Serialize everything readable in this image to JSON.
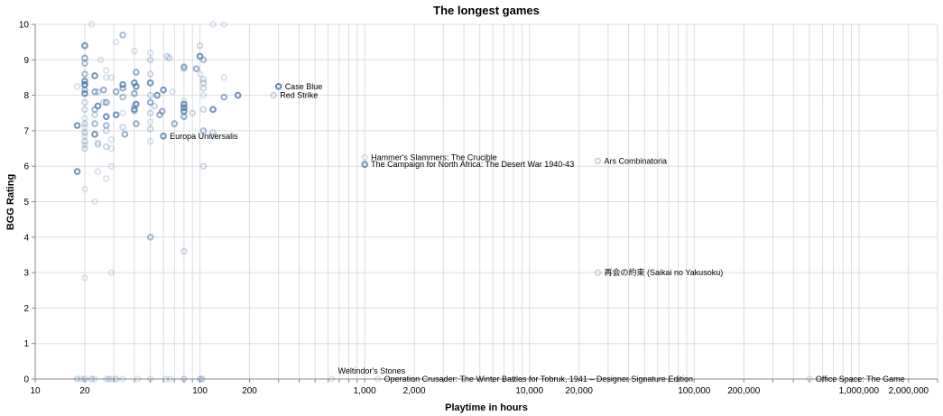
{
  "chart_data": {
    "type": "scatter",
    "title": "The longest games",
    "xlabel": "Playtime in hours",
    "ylabel": "BGG Rating",
    "x_scale": "log",
    "xlim": [
      10,
      3000000
    ],
    "ylim": [
      0,
      10
    ],
    "x_ticks": [
      10,
      20,
      100,
      200,
      1000,
      2000,
      10000,
      20000,
      100000,
      200000,
      1000000,
      2000000
    ],
    "x_tick_labels": [
      "10",
      "20",
      "100",
      "200",
      "1,000",
      "2,000",
      "10,000",
      "20,000",
      "100,000",
      "200,000",
      "1,000,000",
      "2,000,000"
    ],
    "y_ticks": [
      0,
      1,
      2,
      3,
      4,
      5,
      6,
      7,
      8,
      9,
      10
    ],
    "y_tick_labels": [
      "0",
      "1",
      "2",
      "3",
      "4",
      "5",
      "6",
      "7",
      "8",
      "9",
      "10"
    ],
    "grid": true,
    "point_color": "#4c78a8",
    "labeled_points": [
      {
        "name": "Case Blue",
        "x": 300,
        "y": 8.25,
        "opacity": 0.9
      },
      {
        "name": "Red Strike",
        "x": 280,
        "y": 8.0,
        "opacity": 0.3
      },
      {
        "name": "Europa Universalis",
        "x": 60,
        "y": 6.85,
        "opacity": 0.8
      },
      {
        "name": "Hammer's Slammers: The Crucible",
        "x": 1000,
        "y": 6.25,
        "opacity": 0.2
      },
      {
        "name": "The Campaign for North Africa: The Desert War 1940-43",
        "x": 1000,
        "y": 6.05,
        "opacity": 0.8
      },
      {
        "name": "Ars Combinatoria",
        "x": 26000,
        "y": 6.15,
        "opacity": 0.3
      },
      {
        "name": "再会の約束 (Saikai no Yakusoku)",
        "x": 26000,
        "y": 3.0,
        "opacity": 0.3
      },
      {
        "name": "Weltindor's Stones",
        "x": 630,
        "y": 0.0,
        "opacity": 0.2
      },
      {
        "name": "Operation Crusader: The Winter Battles for Tobruk, 1941 – Designer Signature Edition",
        "x": 1200,
        "y": 0.0,
        "opacity": 0.2
      },
      {
        "name": "Office Space: The Game",
        "x": 500000,
        "y": 0.0,
        "opacity": 0.2
      }
    ],
    "points": [
      {
        "x": 20,
        "y": 9.4,
        "o": 0.8
      },
      {
        "x": 20,
        "y": 9.05,
        "o": 0.6
      },
      {
        "x": 20,
        "y": 8.9,
        "o": 0.5
      },
      {
        "x": 20,
        "y": 8.6,
        "o": 0.5
      },
      {
        "x": 20,
        "y": 8.4,
        "o": 0.8
      },
      {
        "x": 20,
        "y": 8.3,
        "o": 0.9
      },
      {
        "x": 20,
        "y": 8.15,
        "o": 0.5
      },
      {
        "x": 20,
        "y": 8.05,
        "o": 0.8
      },
      {
        "x": 20,
        "y": 7.8,
        "o": 0.3
      },
      {
        "x": 20,
        "y": 7.6,
        "o": 0.3
      },
      {
        "x": 20,
        "y": 7.35,
        "o": 0.2
      },
      {
        "x": 20,
        "y": 7.2,
        "o": 0.3
      },
      {
        "x": 20,
        "y": 7.1,
        "o": 0.2
      },
      {
        "x": 20,
        "y": 6.95,
        "o": 0.3
      },
      {
        "x": 20,
        "y": 6.85,
        "o": 0.2
      },
      {
        "x": 20,
        "y": 6.7,
        "o": 0.3
      },
      {
        "x": 20,
        "y": 6.6,
        "o": 0.2
      },
      {
        "x": 20,
        "y": 6.5,
        "o": 0.3
      },
      {
        "x": 20,
        "y": 5.35,
        "o": 0.2
      },
      {
        "x": 20,
        "y": 2.85,
        "o": 0.2
      },
      {
        "x": 20,
        "y": 0.0,
        "o": 0.3
      },
      {
        "x": 18,
        "y": 8.25,
        "o": 0.2
      },
      {
        "x": 18,
        "y": 7.15,
        "o": 0.8
      },
      {
        "x": 18,
        "y": 5.85,
        "o": 0.8
      },
      {
        "x": 18,
        "y": 0.0,
        "o": 0.3
      },
      {
        "x": 19,
        "y": 0.0,
        "o": 0.2
      },
      {
        "x": 22,
        "y": 10.0,
        "o": 0.2
      },
      {
        "x": 23,
        "y": 8.55,
        "o": 0.8
      },
      {
        "x": 23,
        "y": 8.1,
        "o": 0.6
      },
      {
        "x": 24,
        "y": 8.1,
        "o": 0.3
      },
      {
        "x": 23,
        "y": 7.6,
        "o": 0.5
      },
      {
        "x": 24,
        "y": 7.7,
        "o": 0.8
      },
      {
        "x": 23,
        "y": 7.45,
        "o": 0.3
      },
      {
        "x": 23,
        "y": 7.2,
        "o": 0.5
      },
      {
        "x": 23,
        "y": 6.9,
        "o": 0.8
      },
      {
        "x": 24,
        "y": 6.65,
        "o": 0.3
      },
      {
        "x": 24,
        "y": 6.6,
        "o": 0.2
      },
      {
        "x": 24,
        "y": 5.85,
        "o": 0.2
      },
      {
        "x": 23,
        "y": 5.0,
        "o": 0.2
      },
      {
        "x": 23,
        "y": 0.0,
        "o": 0.2
      },
      {
        "x": 22,
        "y": 0.0,
        "o": 0.3
      },
      {
        "x": 25,
        "y": 9.0,
        "o": 0.2
      },
      {
        "x": 26,
        "y": 8.15,
        "o": 0.6
      },
      {
        "x": 27,
        "y": 8.7,
        "o": 0.2
      },
      {
        "x": 27,
        "y": 8.5,
        "o": 0.2
      },
      {
        "x": 27,
        "y": 7.8,
        "o": 0.6
      },
      {
        "x": 27,
        "y": 7.4,
        "o": 0.8
      },
      {
        "x": 27,
        "y": 7.15,
        "o": 0.5
      },
      {
        "x": 27,
        "y": 7.0,
        "o": 0.3
      },
      {
        "x": 27,
        "y": 6.55,
        "o": 0.3
      },
      {
        "x": 27,
        "y": 5.65,
        "o": 0.2
      },
      {
        "x": 27,
        "y": 0.0,
        "o": 0.2
      },
      {
        "x": 26,
        "y": 7.8,
        "o": 0.3
      },
      {
        "x": 29,
        "y": 8.5,
        "o": 0.2
      },
      {
        "x": 29,
        "y": 6.75,
        "o": 0.2
      },
      {
        "x": 29,
        "y": 6.5,
        "o": 0.2
      },
      {
        "x": 29,
        "y": 6.0,
        "o": 0.2
      },
      {
        "x": 29,
        "y": 3.0,
        "o": 0.2
      },
      {
        "x": 29,
        "y": 0.0,
        "o": 0.2
      },
      {
        "x": 28,
        "y": 0.0,
        "o": 0.2
      },
      {
        "x": 31,
        "y": 9.5,
        "o": 0.2
      },
      {
        "x": 31,
        "y": 8.1,
        "o": 0.6
      },
      {
        "x": 31,
        "y": 7.45,
        "o": 0.8
      },
      {
        "x": 31,
        "y": 0.0,
        "o": 0.3
      },
      {
        "x": 34,
        "y": 9.7,
        "o": 0.5
      },
      {
        "x": 34,
        "y": 8.3,
        "o": 0.8
      },
      {
        "x": 34,
        "y": 8.2,
        "o": 0.6
      },
      {
        "x": 34,
        "y": 7.95,
        "o": 0.5
      },
      {
        "x": 34,
        "y": 7.5,
        "o": 0.2
      },
      {
        "x": 34,
        "y": 7.1,
        "o": 0.3
      },
      {
        "x": 35,
        "y": 6.9,
        "o": 0.6
      },
      {
        "x": 34,
        "y": 0.0,
        "o": 0.2
      },
      {
        "x": 40,
        "y": 9.25,
        "o": 0.2
      },
      {
        "x": 40,
        "y": 8.35,
        "o": 0.8
      },
      {
        "x": 40,
        "y": 8.05,
        "o": 0.6
      },
      {
        "x": 41,
        "y": 8.65,
        "o": 0.6
      },
      {
        "x": 41,
        "y": 8.25,
        "o": 0.8
      },
      {
        "x": 41,
        "y": 7.75,
        "o": 0.8
      },
      {
        "x": 40,
        "y": 7.6,
        "o": 0.8
      },
      {
        "x": 41,
        "y": 7.2,
        "o": 0.6
      },
      {
        "x": 40,
        "y": 7.7,
        "o": 0.3
      },
      {
        "x": 42,
        "y": 0.0,
        "o": 0.2
      },
      {
        "x": 40,
        "y": 7.55,
        "o": 0.3
      },
      {
        "x": 50,
        "y": 9.2,
        "o": 0.2
      },
      {
        "x": 50,
        "y": 9.0,
        "o": 0.3
      },
      {
        "x": 50,
        "y": 8.6,
        "o": 0.3
      },
      {
        "x": 50,
        "y": 8.35,
        "o": 0.8
      },
      {
        "x": 50,
        "y": 8.0,
        "o": 0.3
      },
      {
        "x": 50,
        "y": 7.8,
        "o": 0.6
      },
      {
        "x": 50,
        "y": 7.5,
        "o": 0.3
      },
      {
        "x": 50,
        "y": 7.25,
        "o": 0.2
      },
      {
        "x": 50,
        "y": 7.05,
        "o": 0.3
      },
      {
        "x": 50,
        "y": 6.7,
        "o": 0.2
      },
      {
        "x": 50,
        "y": 4.0,
        "o": 0.5
      },
      {
        "x": 50,
        "y": 0.0,
        "o": 0.2
      },
      {
        "x": 53,
        "y": 7.7,
        "o": 0.3
      },
      {
        "x": 55,
        "y": 8.0,
        "o": 0.8
      },
      {
        "x": 57,
        "y": 7.45,
        "o": 0.6
      },
      {
        "x": 60,
        "y": 8.15,
        "o": 0.8
      },
      {
        "x": 59,
        "y": 7.55,
        "o": 0.6
      },
      {
        "x": 63,
        "y": 9.1,
        "o": 0.3
      },
      {
        "x": 65,
        "y": 9.05,
        "o": 0.3
      },
      {
        "x": 62,
        "y": 0.0,
        "o": 0.2
      },
      {
        "x": 66,
        "y": 0.0,
        "o": 0.2
      },
      {
        "x": 70,
        "y": 7.2,
        "o": 0.6
      },
      {
        "x": 68,
        "y": 8.1,
        "o": 0.2
      },
      {
        "x": 80,
        "y": 8.8,
        "o": 0.6
      },
      {
        "x": 80,
        "y": 8.75,
        "o": 0.3
      },
      {
        "x": 80,
        "y": 7.85,
        "o": 0.2
      },
      {
        "x": 80,
        "y": 7.75,
        "o": 0.8
      },
      {
        "x": 80,
        "y": 7.65,
        "o": 0.8
      },
      {
        "x": 80,
        "y": 7.55,
        "o": 0.8
      },
      {
        "x": 80,
        "y": 7.4,
        "o": 0.6
      },
      {
        "x": 80,
        "y": 3.6,
        "o": 0.3
      },
      {
        "x": 80,
        "y": 0.0,
        "o": 0.3
      },
      {
        "x": 90,
        "y": 7.5,
        "o": 0.3
      },
      {
        "x": 95,
        "y": 8.75,
        "o": 0.6
      },
      {
        "x": 100,
        "y": 9.4,
        "o": 0.3
      },
      {
        "x": 100,
        "y": 8.6,
        "o": 0.2
      },
      {
        "x": 100,
        "y": 9.1,
        "o": 0.8
      },
      {
        "x": 105,
        "y": 9.0,
        "o": 0.5
      },
      {
        "x": 105,
        "y": 8.45,
        "o": 0.3
      },
      {
        "x": 105,
        "y": 8.35,
        "o": 0.3
      },
      {
        "x": 105,
        "y": 8.2,
        "o": 0.3
      },
      {
        "x": 105,
        "y": 8.0,
        "o": 0.2
      },
      {
        "x": 105,
        "y": 7.6,
        "o": 0.3
      },
      {
        "x": 105,
        "y": 7.0,
        "o": 0.5
      },
      {
        "x": 105,
        "y": 6.0,
        "o": 0.3
      },
      {
        "x": 100,
        "y": 0.0,
        "o": 0.3
      },
      {
        "x": 103,
        "y": 0.0,
        "o": 0.3
      },
      {
        "x": 120,
        "y": 10.0,
        "o": 0.2
      },
      {
        "x": 120,
        "y": 7.6,
        "o": 0.8
      },
      {
        "x": 120,
        "y": 6.95,
        "o": 0.3
      },
      {
        "x": 120,
        "y": 6.85,
        "o": 0.2
      },
      {
        "x": 140,
        "y": 10.0,
        "o": 0.2
      },
      {
        "x": 140,
        "y": 8.5,
        "o": 0.2
      },
      {
        "x": 140,
        "y": 7.95,
        "o": 0.6
      },
      {
        "x": 170,
        "y": 8.0,
        "o": 0.8
      }
    ]
  }
}
